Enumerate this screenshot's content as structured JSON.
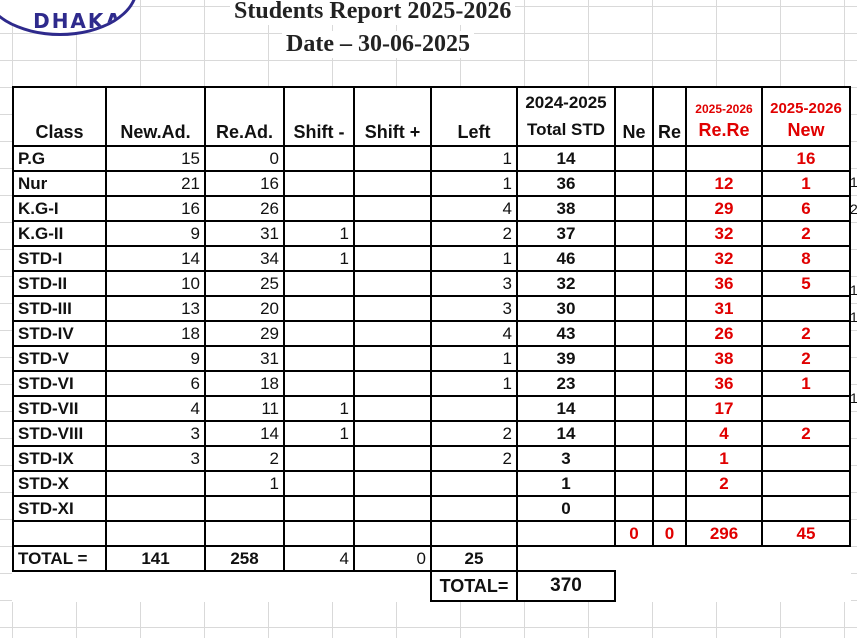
{
  "header": {
    "logo_text": "DHAKA",
    "title": "Students Report 2025-2026",
    "date": "Date – 30-06-2025"
  },
  "columns": {
    "class": "Class",
    "new_ad": "New.Ad.",
    "re_ad": "Re.Ad.",
    "shift_minus": "Shift -",
    "shift_plus": "Shift +",
    "left": "Left",
    "total_year": "2024-2025",
    "total_label": "Total STD",
    "ne": "Ne",
    "re": "Re",
    "rere_year": "2025-2026",
    "rere_label": "Re.Re",
    "new_year": "2025-2026",
    "new_label": "New"
  },
  "rows": [
    {
      "class": "P.G",
      "new_ad": "15",
      "re_ad": "0",
      "shift_minus": "",
      "shift_plus": "",
      "left": "1",
      "total": "14",
      "ne": "",
      "re": "",
      "rere": "",
      "new": "16",
      "edge": ""
    },
    {
      "class": "Nur",
      "new_ad": "21",
      "re_ad": "16",
      "shift_minus": "",
      "shift_plus": "",
      "left": "1",
      "total": "36",
      "ne": "",
      "re": "",
      "rere": "12",
      "new": "1",
      "edge": "1"
    },
    {
      "class": "K.G-I",
      "new_ad": "16",
      "re_ad": "26",
      "shift_minus": "",
      "shift_plus": "",
      "left": "4",
      "total": "38",
      "ne": "",
      "re": "",
      "rere": "29",
      "new": "6",
      "edge": "2"
    },
    {
      "class": "K.G-II",
      "new_ad": "9",
      "re_ad": "31",
      "shift_minus": "1",
      "shift_plus": "",
      "left": "2",
      "total": "37",
      "ne": "",
      "re": "",
      "rere": "32",
      "new": "2",
      "edge": ""
    },
    {
      "class": "STD-I",
      "new_ad": "14",
      "re_ad": "34",
      "shift_minus": "1",
      "shift_plus": "",
      "left": "1",
      "total": "46",
      "ne": "",
      "re": "",
      "rere": "32",
      "new": "8",
      "edge": ""
    },
    {
      "class": "STD-II",
      "new_ad": "10",
      "re_ad": "25",
      "shift_minus": "",
      "shift_plus": "",
      "left": "3",
      "total": "32",
      "ne": "",
      "re": "",
      "rere": "36",
      "new": "5",
      "edge": "1"
    },
    {
      "class": "STD-III",
      "new_ad": "13",
      "re_ad": "20",
      "shift_minus": "",
      "shift_plus": "",
      "left": "3",
      "total": "30",
      "ne": "",
      "re": "",
      "rere": "31",
      "new": "",
      "edge": "1"
    },
    {
      "class": "STD-IV",
      "new_ad": "18",
      "re_ad": "29",
      "shift_minus": "",
      "shift_plus": "",
      "left": "4",
      "total": "43",
      "ne": "",
      "re": "",
      "rere": "26",
      "new": "2",
      "edge": ""
    },
    {
      "class": "STD-V",
      "new_ad": "9",
      "re_ad": "31",
      "shift_minus": "",
      "shift_plus": "",
      "left": "1",
      "total": "39",
      "ne": "",
      "re": "",
      "rere": "38",
      "new": "2",
      "edge": ""
    },
    {
      "class": "STD-VI",
      "new_ad": "6",
      "re_ad": "18",
      "shift_minus": "",
      "shift_plus": "",
      "left": "1",
      "total": "23",
      "ne": "",
      "re": "",
      "rere": "36",
      "new": "1",
      "edge": "1"
    },
    {
      "class": "STD-VII",
      "new_ad": "4",
      "re_ad": "11",
      "shift_minus": "1",
      "shift_plus": "",
      "left": "",
      "total": "14",
      "ne": "",
      "re": "",
      "rere": "17",
      "new": "",
      "edge": ""
    },
    {
      "class": "STD-VIII",
      "new_ad": "3",
      "re_ad": "14",
      "shift_minus": "1",
      "shift_plus": "",
      "left": "2",
      "total": "14",
      "ne": "",
      "re": "",
      "rere": "4",
      "new": "2",
      "edge": ""
    },
    {
      "class": "STD-IX",
      "new_ad": "3",
      "re_ad": "2",
      "shift_minus": "",
      "shift_plus": "",
      "left": "2",
      "total": "3",
      "ne": "",
      "re": "",
      "rere": "1",
      "new": "",
      "edge": ""
    },
    {
      "class": "STD-X",
      "new_ad": "",
      "re_ad": "1",
      "shift_minus": "",
      "shift_plus": "",
      "left": "",
      "total": "1",
      "ne": "",
      "re": "",
      "rere": "2",
      "new": "",
      "edge": ""
    },
    {
      "class": "STD-XI",
      "new_ad": "",
      "re_ad": "",
      "shift_minus": "",
      "shift_plus": "",
      "left": "",
      "total": "0",
      "ne": "",
      "re": "",
      "rere": "",
      "new": "",
      "edge": ""
    }
  ],
  "subtotals": {
    "ne": "0",
    "re": "0",
    "rere": "296",
    "new": "45"
  },
  "totals": {
    "label": "TOTAL =",
    "new_ad": "141",
    "re_ad": "258",
    "shift_minus": "4",
    "shift_plus": "0",
    "left": "25"
  },
  "grand_total": {
    "label": "TOTAL=",
    "value": "370"
  },
  "colors": {
    "red": "#e00000",
    "logo": "#2e2a8c",
    "grid": "#d9d9d9"
  }
}
